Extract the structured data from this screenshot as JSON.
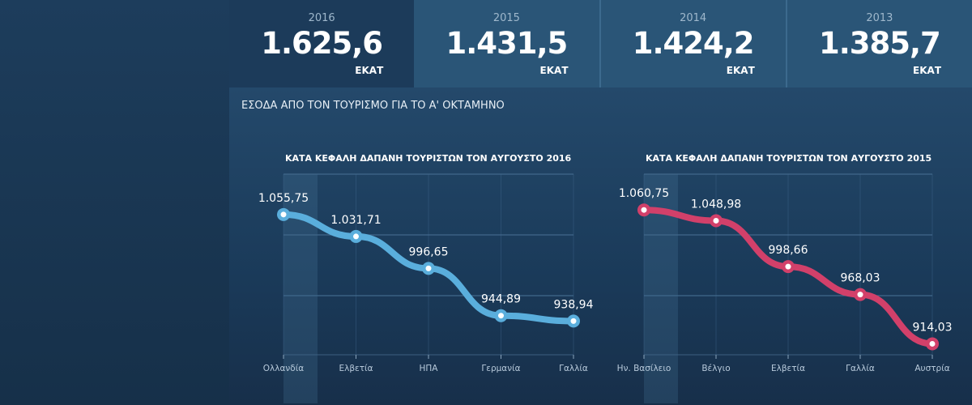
{
  "cards": [
    {
      "year": "2016",
      "value": "1.625,6",
      "unit": "ΕΚΑΤ"
    },
    {
      "year": "2015",
      "value": "1.431,5",
      "unit": "ΕΚΑΤ"
    },
    {
      "year": "2014",
      "value": "1.424,2",
      "unit": "ΕΚΑΤ"
    },
    {
      "year": "2013",
      "value": "1.385,7",
      "unit": "ΕΚΑΤ"
    }
  ],
  "section_title": "ΕΣΟΔΑ ΑΠΟ ΤΟΝ ΤΟΥΡΙΣΜΟ ΓΙΑ ΤΟ Α' ΟΚΤΑΜΗΝΟ",
  "chart_data": [
    {
      "type": "line",
      "title": "ΚΑΤΑ ΚΕΦΑΛΗ ΔΑΠΑΝΗ ΤΟΥΡΙΣΤΩΝ ΤΟΝ ΑΥΓΟΥΣΤΟ 2016",
      "categories": [
        "Ολλανδία",
        "Ελβετία",
        "ΗΠΑ",
        "Γερμανία",
        "Γαλλία"
      ],
      "values": [
        1055.75,
        1031.71,
        996.65,
        944.89,
        938.94
      ],
      "labels": [
        "1.055,75",
        "1.031,71",
        "996,65",
        "944,89",
        "938,94"
      ],
      "color": "#5aaedc",
      "ylim": [
        902,
        1100
      ],
      "grid": true
    },
    {
      "type": "line",
      "title": "ΚΑΤΑ ΚΕΦΑΛΗ ΔΑΠΑΝΗ ΤΟΥΡΙΣΤΩΝ ΤΟΝ ΑΥΓΟΥΣΤΟ 2015",
      "categories": [
        "Ην. Βασίλειο",
        "Βέλγιο",
        "Ελβετία",
        "Γαλλία",
        "Αυστρία"
      ],
      "values": [
        1060.75,
        1048.98,
        998.66,
        968.03,
        914.03
      ],
      "labels": [
        "1.060,75",
        "1.048,98",
        "998,66",
        "968,03",
        "914,03"
      ],
      "color": "#d2406a",
      "ylim": [
        902,
        1100
      ],
      "grid": true
    }
  ]
}
